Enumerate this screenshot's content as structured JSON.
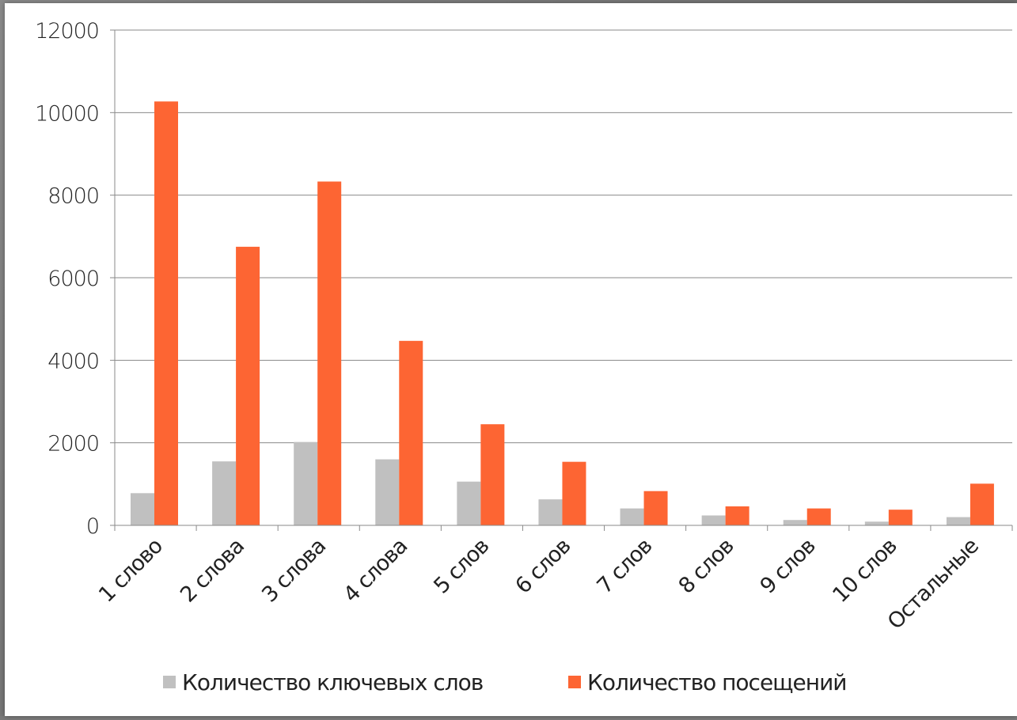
{
  "chart_data": {
    "type": "bar",
    "categories": [
      "1 слово",
      "2 слова",
      "3 слова",
      "4 слова",
      "5 слов",
      "6 слов",
      "7 слов",
      "8 слов",
      "9 слов",
      "10 слов",
      "Остальные"
    ],
    "series": [
      {
        "name": "Количество ключевых слов",
        "color": "#c0c0c0",
        "values": [
          780,
          1550,
          2020,
          1600,
          1060,
          630,
          410,
          240,
          130,
          90,
          200
        ]
      },
      {
        "name": "Количество посещений",
        "color": "#fd6533",
        "values": [
          10270,
          6750,
          8330,
          4470,
          2450,
          1540,
          830,
          460,
          410,
          380,
          1010
        ]
      }
    ],
    "yticks": [
      "0",
      "2000",
      "4000",
      "6000",
      "8000",
      "10000",
      "12000"
    ],
    "ylim": [
      0,
      12000
    ],
    "grid": true,
    "legend_position": "bottom",
    "title": "",
    "xlabel": "",
    "ylabel": ""
  }
}
